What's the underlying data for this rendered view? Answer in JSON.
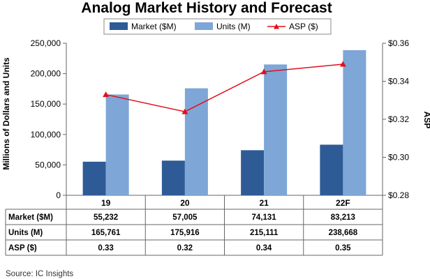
{
  "chart_data": {
    "type": "bar",
    "title": "Analog Market History and Forecast",
    "categories": [
      "19",
      "20",
      "21",
      "22F"
    ],
    "series": [
      {
        "name": "Market ($M)",
        "type": "bar",
        "axis": "left",
        "color": "#2e5b96",
        "values": [
          55232,
          57005,
          74131,
          83213
        ]
      },
      {
        "name": "Units (M)",
        "type": "bar",
        "axis": "left",
        "color": "#7ea6d6",
        "values": [
          165761,
          175916,
          215111,
          238668
        ]
      },
      {
        "name": "ASP ($)",
        "type": "line",
        "axis": "right",
        "color": "#e0101a",
        "marker": "triangle",
        "values": [
          0.333,
          0.324,
          0.345,
          0.349
        ]
      }
    ],
    "ylabel": "Millions of Dollars and Units",
    "y2label": "ASP",
    "ylim": [
      0,
      250000
    ],
    "y2lim": [
      0.28,
      0.36
    ],
    "yticks": [
      "0",
      "50,000",
      "100,000",
      "150,000",
      "200,000",
      "250,000"
    ],
    "y2ticks": [
      "$0.28",
      "$0.30",
      "$0.32",
      "$0.34",
      "$0.36"
    ],
    "legend_position": "top-center",
    "grid": false,
    "table": {
      "rows": [
        {
          "label": "Market ($M)",
          "cells": [
            "55,232",
            "57,005",
            "74,131",
            "83,213"
          ]
        },
        {
          "label": "Units (M)",
          "cells": [
            "165,761",
            "175,916",
            "215,111",
            "238,668"
          ]
        },
        {
          "label": "ASP ($)",
          "cells": [
            "0.33",
            "0.32",
            "0.34",
            "0.35"
          ]
        }
      ]
    },
    "source": "Source:  IC Insights"
  }
}
